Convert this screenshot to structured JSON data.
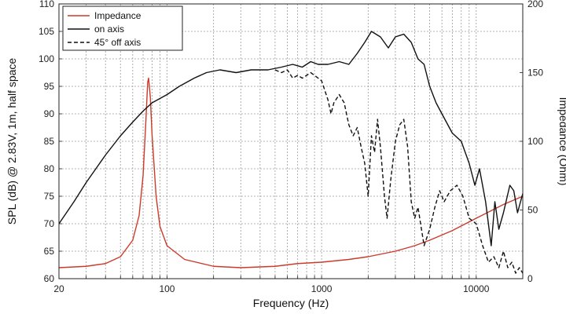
{
  "chart_data": {
    "type": "line",
    "xlabel": "Frequency (Hz)",
    "ylabel_left": "SPL (dB) @ 2.83V, 1m, half space",
    "ylabel_right": "Impedance (Ohm)",
    "xscale": "log",
    "xlim": [
      20,
      20000
    ],
    "ylim_left": [
      60,
      110
    ],
    "ylim_right": [
      0,
      200
    ],
    "grid": true,
    "legend_position": "top-left",
    "x_ticks": [
      {
        "value": 20,
        "label": "20"
      },
      {
        "value": 100,
        "label": "100"
      },
      {
        "value": 1000,
        "label": "1000"
      },
      {
        "value": 10000,
        "label": "10000"
      }
    ],
    "y_left_ticks": [
      {
        "value": 60,
        "label": "60"
      },
      {
        "value": 65,
        "label": "65"
      },
      {
        "value": 70,
        "label": "70"
      },
      {
        "value": 75,
        "label": "75"
      },
      {
        "value": 80,
        "label": "80"
      },
      {
        "value": 85,
        "label": "85"
      },
      {
        "value": 90,
        "label": "90"
      },
      {
        "value": 95,
        "label": "95"
      },
      {
        "value": 100,
        "label": "100"
      },
      {
        "value": 105,
        "label": "105"
      },
      {
        "value": 110,
        "label": "110"
      }
    ],
    "y_right_ticks": [
      {
        "value": 0,
        "label": "0"
      },
      {
        "value": 50,
        "label": "50"
      },
      {
        "value": 100,
        "label": "100"
      },
      {
        "value": 150,
        "label": "150"
      },
      {
        "value": 200,
        "label": "200"
      }
    ],
    "series": [
      {
        "name": "Impedance",
        "axis": "right",
        "color": "#cc3a2a",
        "dash": "solid",
        "points": [
          [
            20,
            8
          ],
          [
            30,
            9
          ],
          [
            40,
            11
          ],
          [
            50,
            16
          ],
          [
            60,
            28
          ],
          [
            66,
            46
          ],
          [
            70,
            75
          ],
          [
            73,
            115
          ],
          [
            75,
            143
          ],
          [
            76,
            146
          ],
          [
            78,
            132
          ],
          [
            80,
            105
          ],
          [
            85,
            60
          ],
          [
            90,
            38
          ],
          [
            100,
            24
          ],
          [
            130,
            14
          ],
          [
            200,
            9
          ],
          [
            300,
            8
          ],
          [
            500,
            9
          ],
          [
            700,
            11
          ],
          [
            1000,
            12
          ],
          [
            1500,
            14
          ],
          [
            2000,
            16
          ],
          [
            3000,
            20
          ],
          [
            4000,
            24
          ],
          [
            5000,
            28
          ],
          [
            7000,
            35
          ],
          [
            10000,
            44
          ],
          [
            15000,
            54
          ],
          [
            20000,
            60
          ]
        ]
      },
      {
        "name": "on axis",
        "axis": "left",
        "color": "#111111",
        "dash": "solid",
        "points": [
          [
            20,
            70
          ],
          [
            25,
            74
          ],
          [
            30,
            77.5
          ],
          [
            40,
            82.5
          ],
          [
            50,
            86
          ],
          [
            60,
            88.5
          ],
          [
            70,
            90.5
          ],
          [
            80,
            92
          ],
          [
            100,
            93.5
          ],
          [
            120,
            95
          ],
          [
            150,
            96.5
          ],
          [
            180,
            97.5
          ],
          [
            220,
            98
          ],
          [
            280,
            97.5
          ],
          [
            350,
            98
          ],
          [
            450,
            98
          ],
          [
            550,
            98.5
          ],
          [
            650,
            99
          ],
          [
            750,
            98.5
          ],
          [
            850,
            99.5
          ],
          [
            950,
            99
          ],
          [
            1100,
            99
          ],
          [
            1300,
            99.5
          ],
          [
            1500,
            99
          ],
          [
            1700,
            101
          ],
          [
            1900,
            103
          ],
          [
            2100,
            105
          ],
          [
            2400,
            104
          ],
          [
            2700,
            102
          ],
          [
            3000,
            104
          ],
          [
            3400,
            104.5
          ],
          [
            3800,
            103
          ],
          [
            4200,
            100
          ],
          [
            4600,
            99
          ],
          [
            5000,
            95
          ],
          [
            5500,
            92
          ],
          [
            6000,
            90
          ],
          [
            7000,
            86.5
          ],
          [
            8000,
            85
          ],
          [
            9000,
            81
          ],
          [
            9800,
            77
          ],
          [
            10500,
            80
          ],
          [
            11500,
            74
          ],
          [
            12500,
            66
          ],
          [
            13200,
            74
          ],
          [
            14000,
            69
          ],
          [
            15000,
            72
          ],
          [
            16500,
            77
          ],
          [
            17500,
            76
          ],
          [
            18500,
            72
          ],
          [
            20000,
            75.5
          ]
        ]
      },
      {
        "name": "45° off axis",
        "axis": "left",
        "color": "#111111",
        "dash": "dashed",
        "points": [
          [
            500,
            98
          ],
          [
            550,
            97.5
          ],
          [
            600,
            98
          ],
          [
            650,
            96.5
          ],
          [
            700,
            97
          ],
          [
            750,
            96.5
          ],
          [
            800,
            97
          ],
          [
            850,
            97.5
          ],
          [
            900,
            97
          ],
          [
            1000,
            96
          ],
          [
            1100,
            92.5
          ],
          [
            1150,
            90
          ],
          [
            1200,
            92
          ],
          [
            1300,
            93.5
          ],
          [
            1400,
            92
          ],
          [
            1500,
            88
          ],
          [
            1600,
            86
          ],
          [
            1700,
            87.5
          ],
          [
            1800,
            84
          ],
          [
            1900,
            81
          ],
          [
            2000,
            75
          ],
          [
            2100,
            86
          ],
          [
            2200,
            83
          ],
          [
            2300,
            89
          ],
          [
            2400,
            84
          ],
          [
            2550,
            75
          ],
          [
            2650,
            71
          ],
          [
            2800,
            78
          ],
          [
            3000,
            85
          ],
          [
            3200,
            88
          ],
          [
            3400,
            89
          ],
          [
            3600,
            84
          ],
          [
            3800,
            74
          ],
          [
            4000,
            71
          ],
          [
            4200,
            73
          ],
          [
            4600,
            66
          ],
          [
            5000,
            69
          ],
          [
            5400,
            73
          ],
          [
            5800,
            76
          ],
          [
            6200,
            74
          ],
          [
            6800,
            76
          ],
          [
            7500,
            77
          ],
          [
            8200,
            75
          ],
          [
            9000,
            71
          ],
          [
            10000,
            70
          ],
          [
            11000,
            66
          ],
          [
            12000,
            63
          ],
          [
            13000,
            64
          ],
          [
            14000,
            62
          ],
          [
            15000,
            65
          ],
          [
            16000,
            62
          ],
          [
            17000,
            63
          ],
          [
            18000,
            61
          ],
          [
            19000,
            62
          ],
          [
            20000,
            61
          ]
        ]
      }
    ]
  }
}
